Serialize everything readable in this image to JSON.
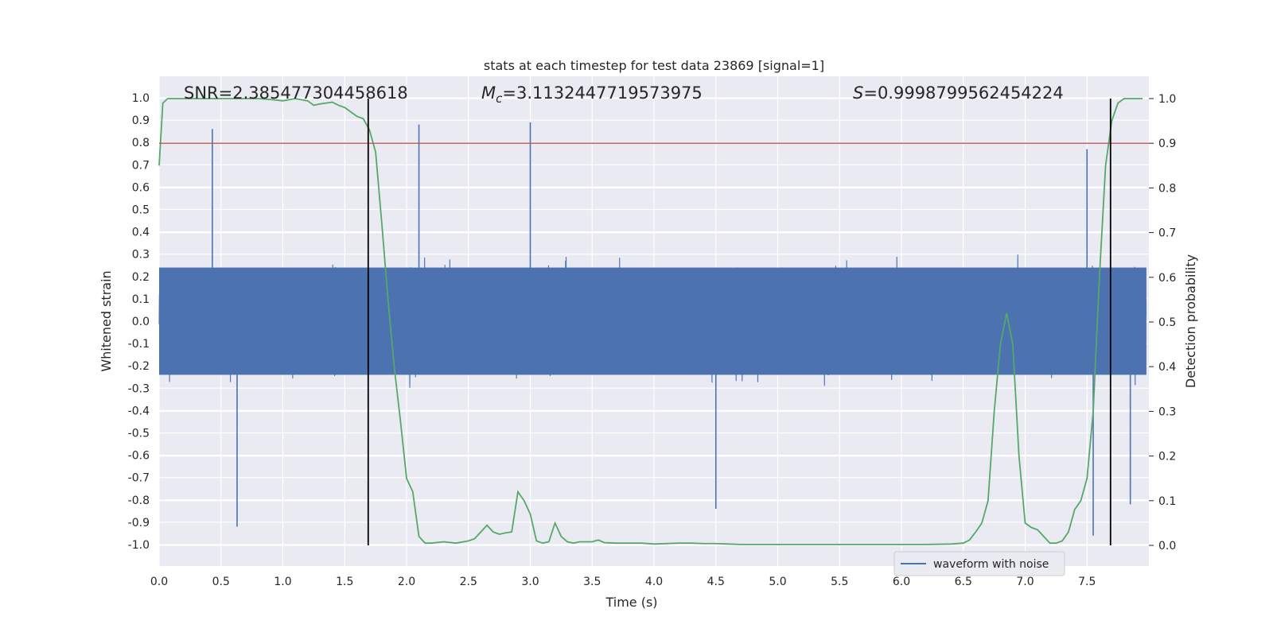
{
  "chart_data": {
    "type": "line",
    "title": "stats at each timestep for test data 23869 [signal=1]",
    "xlabel": "Time (s)",
    "ylabel": "Whitened strain",
    "y2label": "Detection probability",
    "xlim": [
      0,
      8
    ],
    "ylim": [
      -1.1,
      1.1
    ],
    "y2lim": [
      -0.05,
      1.05
    ],
    "x_ticks": [
      "0.0",
      "0.5",
      "1.0",
      "1.5",
      "2.0",
      "2.5",
      "3.0",
      "3.5",
      "4.0",
      "4.5",
      "5.0",
      "5.5",
      "6.0",
      "6.5",
      "7.0",
      "7.5"
    ],
    "y_ticks": [
      "1.0",
      "0.9",
      "0.8",
      "0.7",
      "0.6",
      "0.5",
      "0.4",
      "0.3",
      "0.2",
      "0.1",
      "0.0",
      "-0.1",
      "-0.2",
      "-0.3",
      "-0.4",
      "-0.5",
      "-0.6",
      "-0.7",
      "-0.8",
      "-0.9",
      "-1.0"
    ],
    "y2_ticks": [
      "1.0",
      "0.9",
      "0.8",
      "0.7",
      "0.6",
      "0.5",
      "0.4",
      "0.3",
      "0.2",
      "0.1",
      "0.0"
    ],
    "annotations": {
      "snr": "SNR=2.385477304458618",
      "mc_symbol": "M",
      "mc_sub": "c",
      "mc_value": "=3.1132447719573975",
      "s_symbol": "S",
      "s_value": "=0.9998799562454224"
    },
    "threshold": {
      "y2": 0.9,
      "color": "#c44e52"
    },
    "vertical_lines_x": [
      1.69,
      7.69
    ],
    "grid": true,
    "legend": {
      "position": "bottom-right",
      "entries": [
        "waveform with noise"
      ]
    },
    "series": [
      {
        "name": "waveform with noise",
        "axis": "left",
        "color": "#4c72b0",
        "style": "dense noise, amplitude approx ±0.3 to ±0.88",
        "peak_spikes": [
          {
            "x": 0.43,
            "y": 0.86
          },
          {
            "x": 2.1,
            "y": 0.88
          },
          {
            "x": 3.0,
            "y": 0.89
          },
          {
            "x": 7.5,
            "y": 0.77
          },
          {
            "x": 0.63,
            "y": -0.92
          },
          {
            "x": 4.5,
            "y": -0.84
          },
          {
            "x": 7.55,
            "y": -0.96
          },
          {
            "x": 7.85,
            "y": -0.82
          }
        ]
      },
      {
        "name": "",
        "axis": "right",
        "color": "#55a868",
        "x": [
          0.0,
          0.03,
          0.07,
          0.12,
          0.2,
          0.3,
          0.4,
          0.5,
          0.6,
          0.7,
          0.8,
          0.9,
          1.0,
          1.1,
          1.2,
          1.25,
          1.3,
          1.35,
          1.4,
          1.45,
          1.5,
          1.55,
          1.6,
          1.65,
          1.7,
          1.75,
          1.8,
          1.85,
          1.9,
          1.95,
          2.0,
          2.05,
          2.1,
          2.15,
          2.2,
          2.3,
          2.4,
          2.5,
          2.55,
          2.6,
          2.65,
          2.7,
          2.75,
          2.8,
          2.85,
          2.9,
          2.95,
          3.0,
          3.05,
          3.1,
          3.15,
          3.2,
          3.25,
          3.3,
          3.35,
          3.4,
          3.5,
          3.55,
          3.6,
          3.7,
          3.8,
          3.9,
          4.0,
          4.2,
          4.3,
          4.4,
          4.5,
          4.6,
          4.7,
          4.8,
          5.0,
          5.2,
          5.4,
          5.6,
          5.8,
          6.0,
          6.2,
          6.4,
          6.5,
          6.55,
          6.6,
          6.65,
          6.7,
          6.75,
          6.8,
          6.85,
          6.9,
          6.95,
          7.0,
          7.05,
          7.1,
          7.15,
          7.2,
          7.25,
          7.3,
          7.35,
          7.4,
          7.45,
          7.5,
          7.55,
          7.6,
          7.65,
          7.7,
          7.75,
          7.8,
          7.85,
          7.9,
          7.95
        ],
        "values": [
          0.85,
          0.99,
          1.0,
          1.0,
          1.0,
          1.0,
          1.0,
          1.0,
          1.0,
          1.0,
          1.0,
          0.998,
          0.995,
          1.0,
          0.995,
          0.985,
          0.988,
          0.99,
          0.992,
          0.985,
          0.98,
          0.97,
          0.96,
          0.955,
          0.93,
          0.88,
          0.72,
          0.55,
          0.4,
          0.28,
          0.15,
          0.12,
          0.02,
          0.005,
          0.005,
          0.008,
          0.005,
          0.01,
          0.015,
          0.03,
          0.045,
          0.03,
          0.025,
          0.028,
          0.03,
          0.12,
          0.1,
          0.07,
          0.01,
          0.005,
          0.008,
          0.05,
          0.02,
          0.008,
          0.005,
          0.008,
          0.008,
          0.012,
          0.006,
          0.005,
          0.005,
          0.005,
          0.003,
          0.005,
          0.005,
          0.004,
          0.004,
          0.003,
          0.002,
          0.002,
          0.002,
          0.002,
          0.002,
          0.002,
          0.002,
          0.002,
          0.002,
          0.003,
          0.005,
          0.012,
          0.03,
          0.05,
          0.1,
          0.3,
          0.45,
          0.52,
          0.45,
          0.2,
          0.05,
          0.04,
          0.035,
          0.02,
          0.005,
          0.005,
          0.01,
          0.03,
          0.08,
          0.1,
          0.15,
          0.3,
          0.6,
          0.85,
          0.95,
          0.99,
          1.0,
          1.0,
          1.0,
          1.0
        ]
      }
    ]
  }
}
